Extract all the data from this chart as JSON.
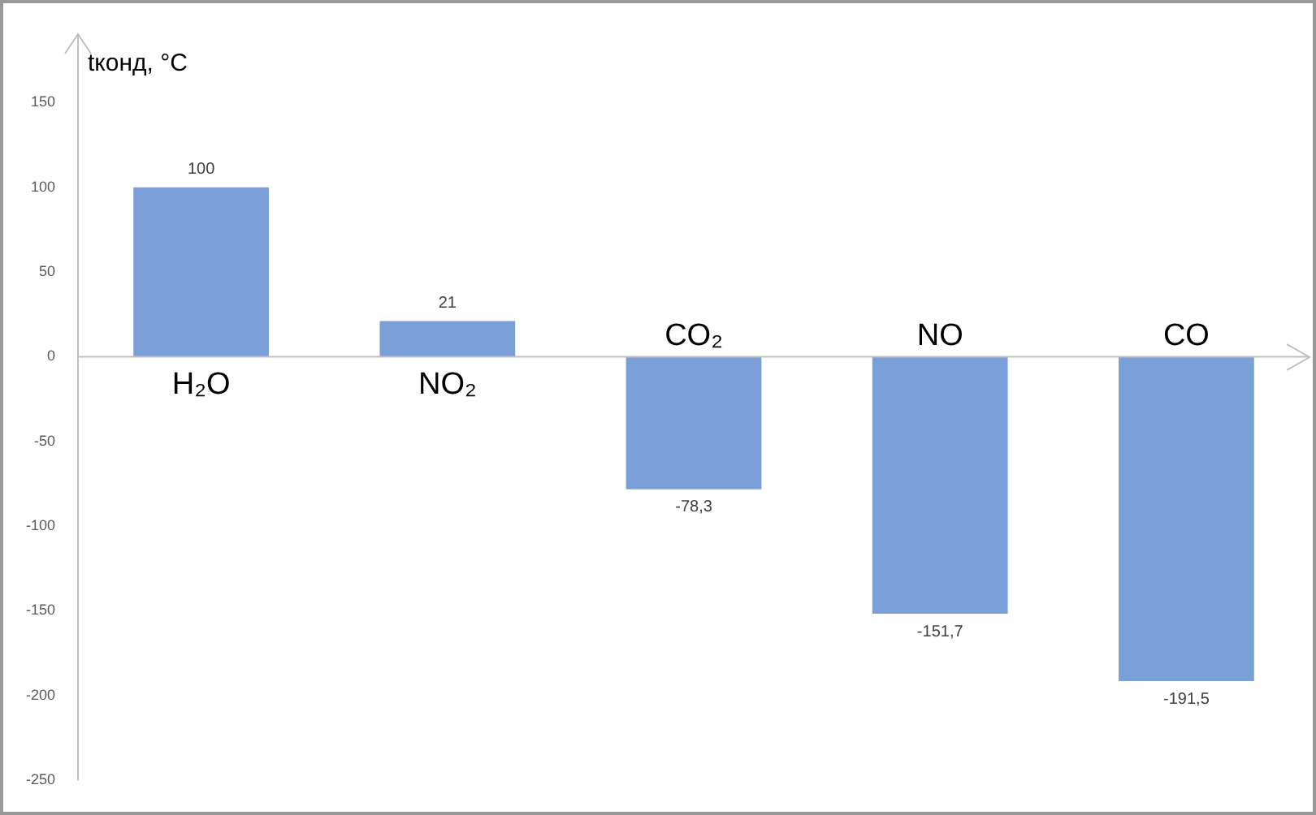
{
  "chart_data": {
    "type": "bar",
    "ylabel": "tконд, °C",
    "categories": [
      "H₂O",
      "NO₂",
      "CO₂",
      "NO",
      "CO"
    ],
    "values": [
      100,
      21,
      -78.3,
      -151.7,
      -191.5
    ],
    "value_labels": [
      "100",
      "21",
      "-78,3",
      "-151,7",
      "-191,5"
    ],
    "color": "#7b9fd9",
    "ylim": [
      -250,
      190
    ],
    "yticks": [
      -250,
      -200,
      -150,
      -100,
      -50,
      0,
      50,
      100,
      150
    ],
    "grid": false,
    "legend": false
  }
}
